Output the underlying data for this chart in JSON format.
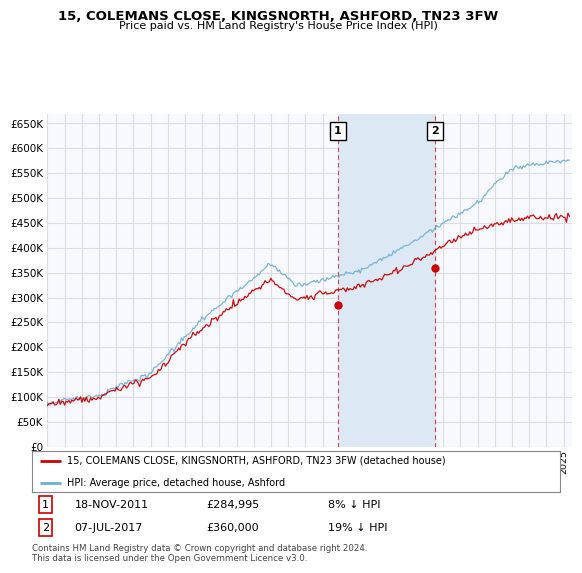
{
  "title": "15, COLEMANS CLOSE, KINGSNORTH, ASHFORD, TN23 3FW",
  "subtitle": "Price paid vs. HM Land Registry's House Price Index (HPI)",
  "ylim": [
    0,
    670000
  ],
  "yticks": [
    0,
    50000,
    100000,
    150000,
    200000,
    250000,
    300000,
    350000,
    400000,
    450000,
    500000,
    550000,
    600000,
    650000
  ],
  "xlim_start": 1995.0,
  "xlim_end": 2025.5,
  "hpi_color": "#6baed6",
  "price_color": "#cc0000",
  "chart_bg": "#f8f9ff",
  "grid_color": "#dddddd",
  "shade_color": "#dce9f5",
  "transaction1_date": 2011.89,
  "transaction1_price": 284995,
  "transaction2_date": 2017.52,
  "transaction2_price": 360000,
  "legend_label1": "15, COLEMANS CLOSE, KINGSNORTH, ASHFORD, TN23 3FW (detached house)",
  "legend_label2": "HPI: Average price, detached house, Ashford",
  "annotation1_label": "1",
  "annotation2_label": "2",
  "footnote": "Contains HM Land Registry data © Crown copyright and database right 2024.\nThis data is licensed under the Open Government Licence v3.0."
}
